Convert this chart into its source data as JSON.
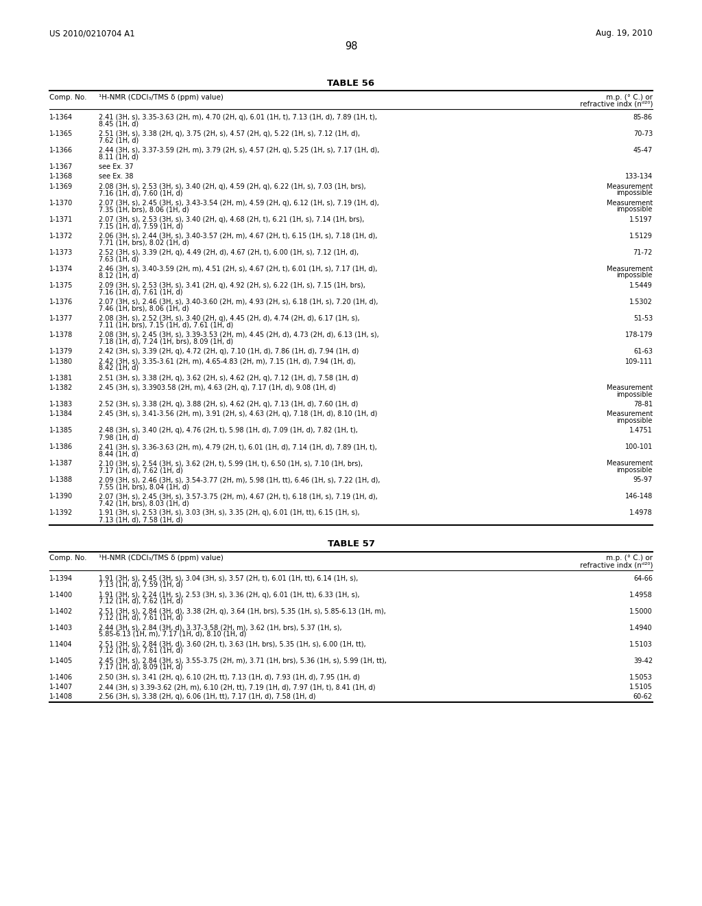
{
  "page_header_left": "US 2010/0210704 A1",
  "page_header_right": "Aug. 19, 2010",
  "page_number": "98",
  "table56_title": "TABLE 56",
  "table57_title": "TABLE 57",
  "col1_header": "Comp. No.",
  "col2_header": "¹H-NMR (CDCl₃/TMS δ (ppm) value)",
  "col3_header_line1": "m.p. (° C.) or",
  "col3_header_line2": "refractive indx (nᵈ²⁰)",
  "table56_rows": [
    [
      "1-1364",
      "2.41 (3H, s), 3.35-3.63 (2H, m), 4.70 (2H, q), 6.01 (1H, t), 7.13 (1H, d), 7.89 (1H, t),\n8.45 (1H, d)",
      "85-86"
    ],
    [
      "1-1365",
      "2.51 (3H, s), 3.38 (2H, q), 3.75 (2H, s), 4.57 (2H, q), 5.22 (1H, s), 7.12 (1H, d),\n7.62 (1H, d)",
      "70-73"
    ],
    [
      "1-1366",
      "2.44 (3H, s), 3.37-3.59 (2H, m), 3.79 (2H, s), 4.57 (2H, q), 5.25 (1H, s), 7.17 (1H, d),\n8.11 (1H, d)",
      "45-47"
    ],
    [
      "1-1367",
      "see Ex. 37",
      ""
    ],
    [
      "1-1368",
      "see Ex. 38",
      "133-134"
    ],
    [
      "1-1369",
      "2.08 (3H, s), 2.53 (3H, s), 3.40 (2H, q), 4.59 (2H, q), 6.22 (1H, s), 7.03 (1H, brs),\n7.16 (1H, d), 7.60 (1H, d)",
      "Measurement\nimpossible"
    ],
    [
      "1-1370",
      "2.07 (3H, s), 2.45 (3H, s), 3.43-3.54 (2H, m), 4.59 (2H, q), 6.12 (1H, s), 7.19 (1H, d),\n7.35 (1H, brs), 8.06 (1H, d)",
      "Measurement\nimpossible"
    ],
    [
      "1-1371",
      "2.07 (3H, s), 2.53 (3H, s), 3.40 (2H, q), 4.68 (2H, t), 6.21 (1H, s), 7.14 (1H, brs),\n7.15 (1H, d), 7.59 (1H, d)",
      "1.5197"
    ],
    [
      "1-1372",
      "2.06 (3H, s), 2.44 (3H, s), 3.40-3.57 (2H, m), 4.67 (2H, t), 6.15 (1H, s), 7.18 (1H, d),\n7.71 (1H, brs), 8.02 (1H, d)",
      "1.5129"
    ],
    [
      "1-1373",
      "2.52 (3H, s), 3.39 (2H, q), 4.49 (2H, d), 4.67 (2H, t), 6.00 (1H, s), 7.12 (1H, d),\n7.63 (1H, d)",
      "71-72"
    ],
    [
      "1-1374",
      "2.46 (3H, s), 3.40-3.59 (2H, m), 4.51 (2H, s), 4.67 (2H, t), 6.01 (1H, s), 7.17 (1H, d),\n8.12 (1H, d)",
      "Measurement\nimpossible"
    ],
    [
      "1-1375",
      "2.09 (3H, s), 2.53 (3H, s), 3.41 (2H, q), 4.92 (2H, s), 6.22 (1H, s), 7.15 (1H, brs),\n7.16 (1H, d), 7.61 (1H, d)",
      "1.5449"
    ],
    [
      "1-1376",
      "2.07 (3H, s), 2.46 (3H, s), 3.40-3.60 (2H, m), 4.93 (2H, s), 6.18 (1H, s), 7.20 (1H, d),\n7.46 (1H, brs), 8.06 (1H, d)",
      "1.5302"
    ],
    [
      "1-1377",
      "2.08 (3H, s), 2.52 (3H, s), 3.40 (2H, q), 4.45 (2H, d), 4.74 (2H, d), 6.17 (1H, s),\n7.11 (1H, brs), 7.15 (1H, d), 7.61 (1H, d)",
      "51-53"
    ],
    [
      "1-1378",
      "2.08 (3H, s), 2.45 (3H, s), 3.39-3.53 (2H, m), 4.45 (2H, d), 4.73 (2H, d), 6.13 (1H, s),\n7.18 (1H, d), 7.24 (1H, brs), 8.09 (1H, d)",
      "178-179"
    ],
    [
      "1-1379",
      "2.42 (3H, s), 3.39 (2H, q), 4.72 (2H, q), 7.10 (1H, d), 7.86 (1H, d), 7.94 (1H, d)",
      "61-63"
    ],
    [
      "1-1380",
      "2.42 (3H, s), 3.35-3.61 (2H, m), 4.65-4.83 (2H, m), 7.15 (1H, d), 7.94 (1H, d),\n8.42 (1H, d)",
      "109-111"
    ],
    [
      "1-1381",
      "2.51 (3H, s), 3.38 (2H, q), 3.62 (2H, s), 4.62 (2H, q), 7.12 (1H, d), 7.58 (1H, d)",
      ""
    ],
    [
      "1-1382",
      "2.45 (3H, s), 3.3903.58 (2H, m), 4.63 (2H, q), 7.17 (1H, d), 9.08 (1H, d)",
      "Measurement\nimpossible"
    ],
    [
      "1-1383",
      "2.52 (3H, s), 3.38 (2H, q), 3.88 (2H, s), 4.62 (2H, q), 7.13 (1H, d), 7.60 (1H, d)",
      "78-81"
    ],
    [
      "1-1384",
      "2.45 (3H, s), 3.41-3.56 (2H, m), 3.91 (2H, s), 4.63 (2H, q), 7.18 (1H, d), 8.10 (1H, d)",
      "Measurement\nimpossible"
    ],
    [
      "1-1385",
      "2.48 (3H, s), 3.40 (2H, q), 4.76 (2H, t), 5.98 (1H, d), 7.09 (1H, d), 7.82 (1H, t),\n7.98 (1H, d)",
      "1.4751"
    ],
    [
      "1-1386",
      "2.41 (3H, s), 3.36-3.63 (2H, m), 4.79 (2H, t), 6.01 (1H, d), 7.14 (1H, d), 7.89 (1H, t),\n8.44 (1H, d)",
      "100-101"
    ],
    [
      "1-1387",
      "2.10 (3H, s), 2.54 (3H, s), 3.62 (2H, t), 5.99 (1H, t), 6.50 (1H, s), 7.10 (1H, brs),\n7.17 (1H, d), 7.62 (1H, d)",
      "Measurement\nimpossible"
    ],
    [
      "1-1388",
      "2.09 (3H, s), 2.46 (3H, s), 3.54-3.77 (2H, m), 5.98 (1H, tt), 6.46 (1H, s), 7.22 (1H, d),\n7.55 (1H, brs), 8.04 (1H, d)",
      "95-97"
    ],
    [
      "1-1390",
      "2.07 (3H, s), 2.45 (3H, s), 3.57-3.75 (2H, m), 4.67 (2H, t), 6.18 (1H, s), 7.19 (1H, d),\n7.42 (1H, brs), 8.03 (1H, d)",
      "146-148"
    ],
    [
      "1-1392",
      "1.91 (3H, s), 2.53 (3H, s), 3.03 (3H, s), 3.35 (2H, q), 6.01 (1H, tt), 6.15 (1H, s),\n7.13 (1H, d), 7.58 (1H, d)",
      "1.4978"
    ]
  ],
  "table57_rows": [
    [
      "1-1394",
      "1.91 (3H, s), 2.45 (3H, s), 3.04 (3H, s), 3.57 (2H, t), 6.01 (1H, tt), 6.14 (1H, s),\n7.13 (1H, d), 7.59 (1H, d)",
      "64-66"
    ],
    [
      "1-1400",
      "1.91 (3H, s), 2.24 (1H, s), 2.53 (3H, s), 3.36 (2H, q), 6.01 (1H, tt), 6.33 (1H, s),\n7.12 (1H, d), 7.62 (1H, d)",
      "1.4958"
    ],
    [
      "1-1402",
      "2.51 (3H, s), 2.84 (3H, d), 3.38 (2H, q), 3.64 (1H, brs), 5.35 (1H, s), 5.85-6.13 (1H, m),\n7.12 (1H, d), 7.61 (1H, d)",
      "1.5000"
    ],
    [
      "1-1403",
      "2.44 (3H, s), 2.84 (3H, d), 3.37-3.58 (2H, m), 3.62 (1H, brs), 5.37 (1H, s),\n5.85-6.13 (1H, m), 7.17 (1H, d), 8.10 (1H, d)",
      "1.4940"
    ],
    [
      "1.1404",
      "2.51 (3H, s), 2.84 (3H, d), 3.60 (2H, t), 3.63 (1H, brs), 5.35 (1H, s), 6.00 (1H, tt),\n7.12 (1H, d), 7.61 (1H, d)",
      "1.5103"
    ],
    [
      "1-1405",
      "2.45 (3H, s), 2.84 (3H, s), 3.55-3.75 (2H, m), 3.71 (1H, brs), 5.36 (1H, s), 5.99 (1H, tt),\n7.17 (1H, d), 8.09 (1H, d)",
      "39-42"
    ],
    [
      "1-1406",
      "2.50 (3H, s), 3.41 (2H, q), 6.10 (2H, tt), 7.13 (1H, d), 7.93 (1H, d), 7.95 (1H, d)",
      "1.5053"
    ],
    [
      "1-1407",
      "2.44 (3H, s) 3.39-3.62 (2H, m), 6.10 (2H, tt), 7.19 (1H, d), 7.97 (1H, t), 8.41 (1H, d)",
      "1.5105"
    ],
    [
      "1-1408",
      "2.56 (3H, s), 3.38 (2H, q), 6.06 (1H, tt), 7.17 (1H, d), 7.58 (1H, d)",
      "60-62"
    ]
  ],
  "font_size_header": 7.5,
  "font_size_body": 7.0,
  "font_size_title": 9.5,
  "font_size_page": 8.5,
  "bg_color": "#ffffff",
  "text_color": "#000000",
  "line_color": "#000000"
}
